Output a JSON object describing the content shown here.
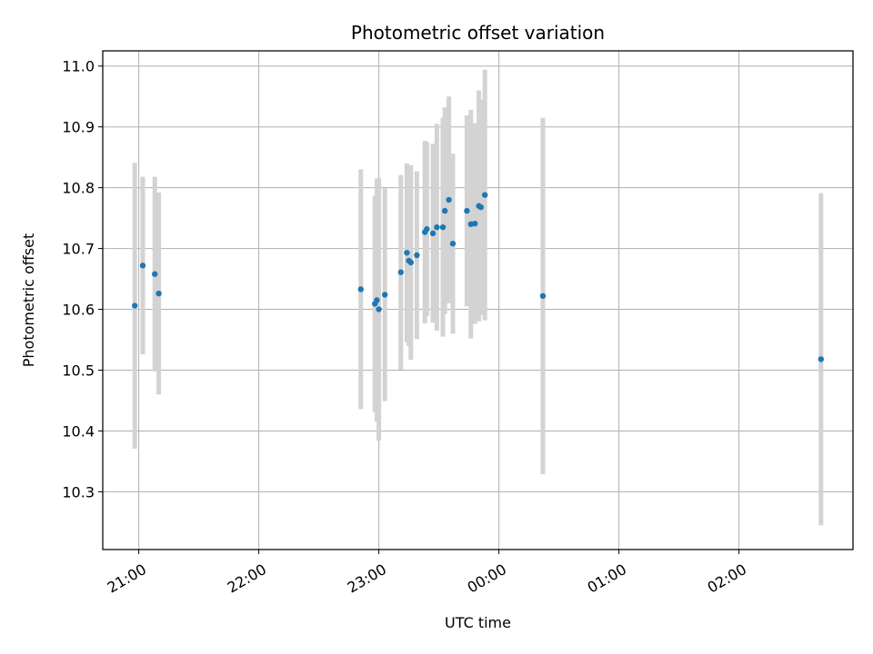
{
  "chart_data": {
    "type": "scatter",
    "title": "Photometric offset variation",
    "xlabel": "UTC time",
    "ylabel": "Photometric offset",
    "xlim": [
      "20:42",
      "02:57"
    ],
    "ylim": [
      10.205,
      11.025
    ],
    "x_ticks": [
      "21:00",
      "22:00",
      "23:00",
      "00:00",
      "01:00",
      "02:00"
    ],
    "y_ticks": [
      10.3,
      10.4,
      10.5,
      10.6,
      10.7,
      10.8,
      10.9,
      11.0
    ],
    "y_tick_labels": [
      "10.3",
      "10.4",
      "10.5",
      "10.6",
      "10.7",
      "10.8",
      "10.9",
      "11.0"
    ],
    "grid": true,
    "colors": {
      "point": "#1f77b4",
      "errorbar": "#d3d3d3",
      "grid": "#b0b0b0"
    },
    "points": [
      {
        "t": "20:58",
        "y": 10.606,
        "err": 0.235
      },
      {
        "t": "21:02",
        "y": 10.672,
        "err": 0.146
      },
      {
        "t": "21:08",
        "y": 10.658,
        "err": 0.16
      },
      {
        "t": "21:10",
        "y": 10.626,
        "err": 0.166
      },
      {
        "t": "22:51",
        "y": 10.633,
        "err": 0.197
      },
      {
        "t": "22:58",
        "y": 10.609,
        "err": 0.178
      },
      {
        "t": "22:59",
        "y": 10.615,
        "err": 0.2
      },
      {
        "t": "23:00",
        "y": 10.6,
        "err": 0.216
      },
      {
        "t": "23:03",
        "y": 10.624,
        "err": 0.175
      },
      {
        "t": "23:11",
        "y": 10.661,
        "err": 0.16
      },
      {
        "t": "23:14",
        "y": 10.693,
        "err": 0.147
      },
      {
        "t": "23:15",
        "y": 10.68,
        "err": 0.14
      },
      {
        "t": "23:16",
        "y": 10.677,
        "err": 0.16
      },
      {
        "t": "23:19",
        "y": 10.689,
        "err": 0.138
      },
      {
        "t": "23:23",
        "y": 10.727,
        "err": 0.15
      },
      {
        "t": "23:24",
        "y": 10.732,
        "err": 0.143
      },
      {
        "t": "23:27",
        "y": 10.725,
        "err": 0.147
      },
      {
        "t": "23:29",
        "y": 10.735,
        "err": 0.17
      },
      {
        "t": "23:32",
        "y": 10.735,
        "err": 0.18
      },
      {
        "t": "23:33",
        "y": 10.762,
        "err": 0.17
      },
      {
        "t": "23:35",
        "y": 10.78,
        "err": 0.17
      },
      {
        "t": "23:37",
        "y": 10.708,
        "err": 0.148
      },
      {
        "t": "23:44",
        "y": 10.762,
        "err": 0.157
      },
      {
        "t": "23:46",
        "y": 10.74,
        "err": 0.188
      },
      {
        "t": "23:48",
        "y": 10.741,
        "err": 0.165
      },
      {
        "t": "23:50",
        "y": 10.77,
        "err": 0.19
      },
      {
        "t": "23:51",
        "y": 10.768,
        "err": 0.177
      },
      {
        "t": "23:53",
        "y": 10.788,
        "err": 0.206
      },
      {
        "t": "00:22",
        "y": 10.622,
        "err": 0.293
      },
      {
        "t": "02:41",
        "y": 10.518,
        "err": 0.273
      }
    ]
  }
}
